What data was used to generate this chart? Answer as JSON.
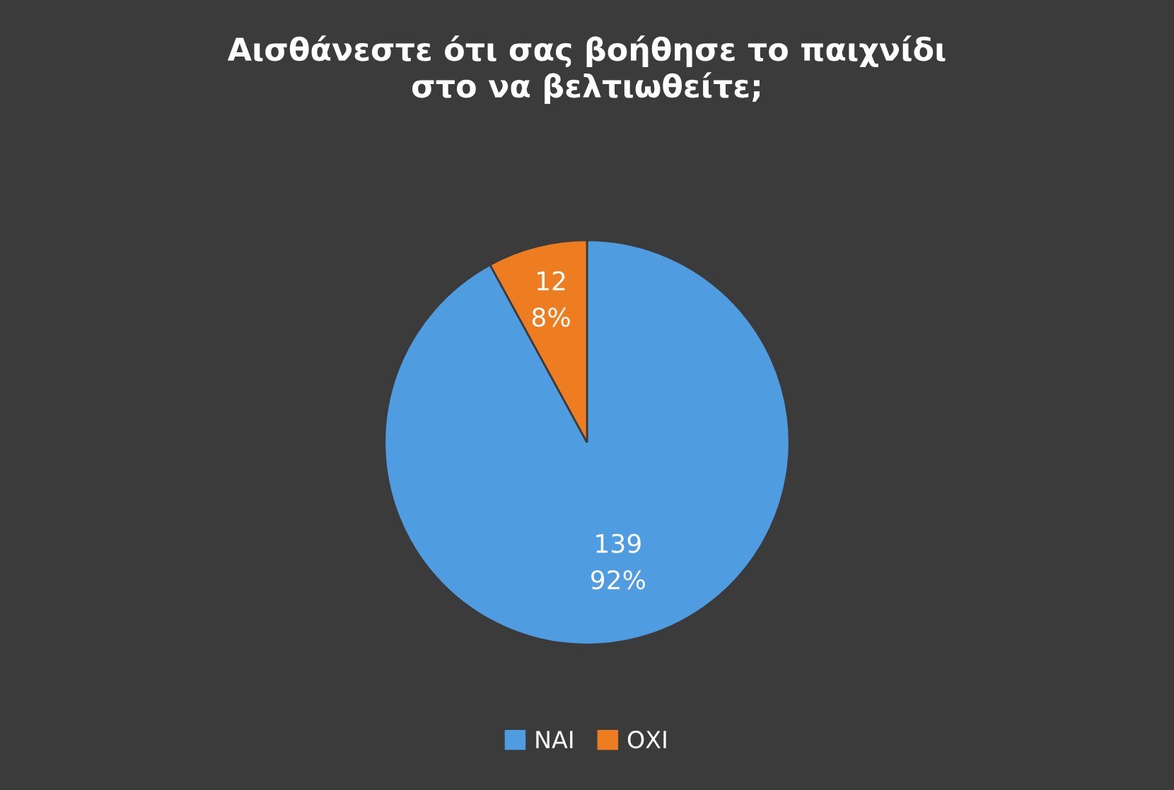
{
  "chart_data": {
    "type": "pie",
    "title": "Αισθάνεστε ότι σας βοήθησε το παιχνίδι\nστο να βελτιωθείτε;",
    "categories": [
      "ΝΑΙ",
      "ΟΧΙ"
    ],
    "values": [
      139,
      12
    ],
    "colors": [
      "#4f9de0",
      "#ee7d22"
    ],
    "value_labels": [
      "139\n92%",
      "12\n8%"
    ],
    "legend": "bottom"
  }
}
